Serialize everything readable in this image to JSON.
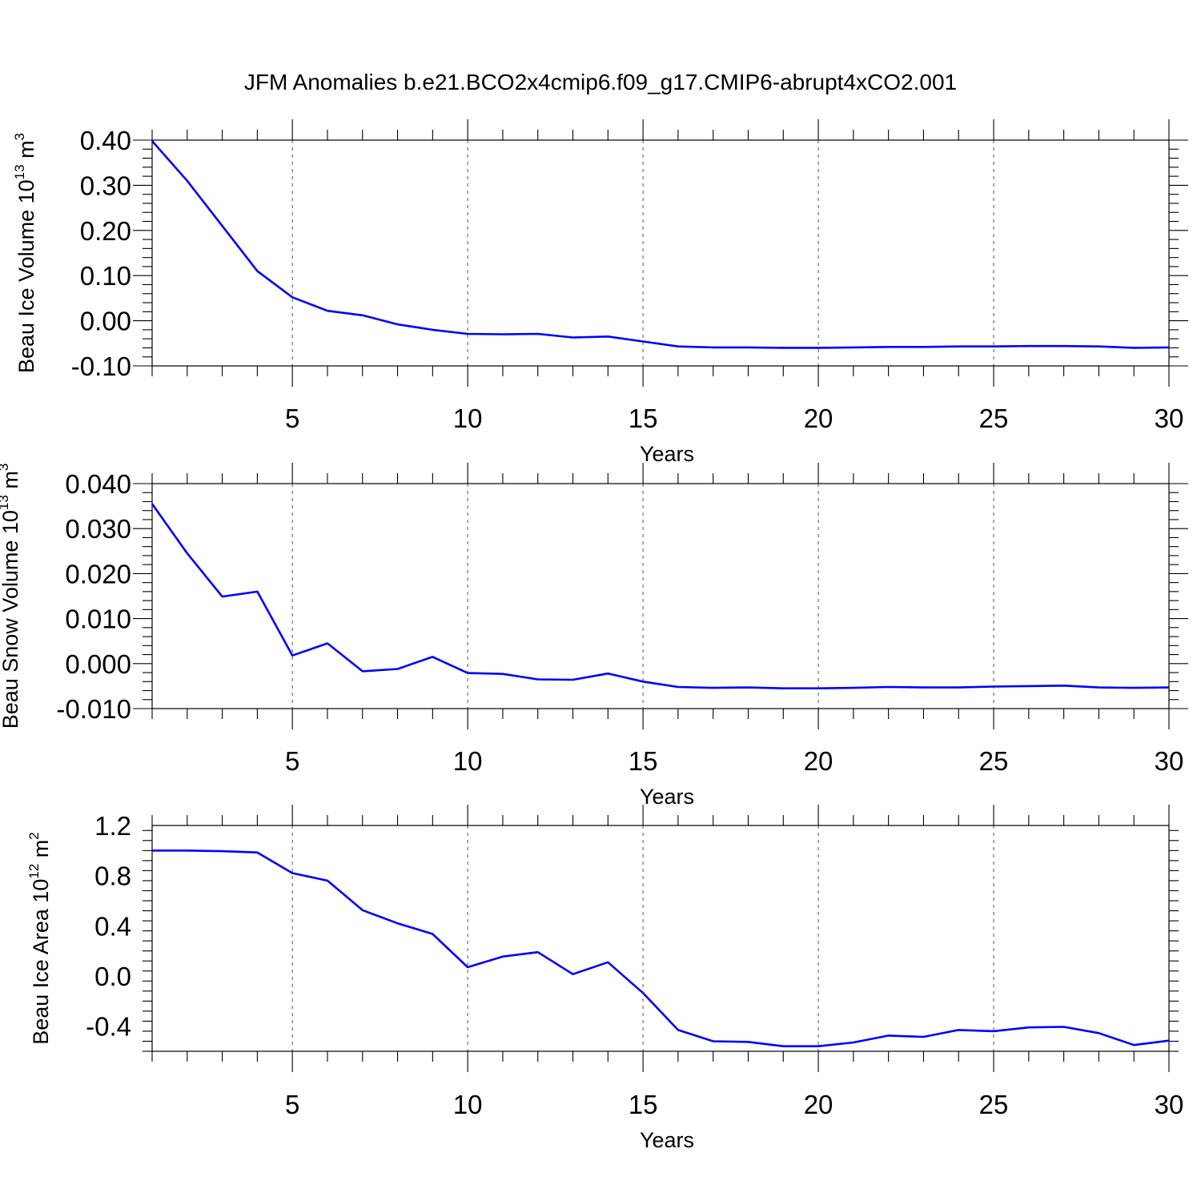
{
  "title": "JFM Anomalies b.e21.BCO2x4cmip6.f09_g17.CMIP6-abrupt4xCO2.001",
  "line_color": "#0000ff",
  "chart_data": [
    {
      "type": "line",
      "ylabel": "Beau Ice Volume 10",
      "ylabel_exp": "13",
      "ylabel_unit": " m",
      "ylabel_unit_exp": "3",
      "xlabel": "Years",
      "xlim": [
        1,
        30
      ],
      "ylim": [
        -0.1,
        0.4
      ],
      "xticks": [
        5,
        10,
        15,
        20,
        25,
        30
      ],
      "xtick_labels": [
        "5",
        "10",
        "15",
        "20",
        "25",
        "30"
      ],
      "yticks": [
        -0.1,
        0.0,
        0.1,
        0.2,
        0.3,
        0.4
      ],
      "ytick_labels": [
        "-0.10",
        "0.00",
        "0.10",
        "0.20",
        "0.30",
        "0.40"
      ],
      "grid": "vertical dashed at major x ticks",
      "x": [
        1,
        2,
        3,
        4,
        5,
        6,
        7,
        8,
        9,
        10,
        11,
        12,
        13,
        14,
        15,
        16,
        17,
        18,
        19,
        20,
        21,
        22,
        23,
        24,
        25,
        26,
        27,
        28,
        29,
        30
      ],
      "y": [
        0.398,
        0.31,
        0.21,
        0.11,
        0.052,
        0.022,
        0.012,
        -0.008,
        -0.02,
        -0.029,
        -0.03,
        -0.029,
        -0.037,
        -0.035,
        -0.046,
        -0.057,
        -0.059,
        -0.059,
        -0.06,
        -0.06,
        -0.059,
        -0.058,
        -0.058,
        -0.057,
        -0.057,
        -0.056,
        -0.056,
        -0.057,
        -0.06,
        -0.059
      ]
    },
    {
      "type": "line",
      "ylabel": "Beau Snow Volume 10",
      "ylabel_exp": "13",
      "ylabel_unit": " m",
      "ylabel_unit_exp": "3",
      "xlabel": "Years",
      "xlim": [
        1,
        30
      ],
      "ylim": [
        -0.01,
        0.04
      ],
      "xticks": [
        5,
        10,
        15,
        20,
        25,
        30
      ],
      "xtick_labels": [
        "5",
        "10",
        "15",
        "20",
        "25",
        "30"
      ],
      "yticks": [
        -0.01,
        0.0,
        0.01,
        0.02,
        0.03,
        0.04
      ],
      "ytick_labels": [
        "-0.010",
        "0.000",
        "0.010",
        "0.020",
        "0.030",
        "0.040"
      ],
      "grid": "vertical dashed at major x ticks",
      "x": [
        1,
        2,
        3,
        4,
        5,
        6,
        7,
        8,
        9,
        10,
        11,
        12,
        13,
        14,
        15,
        16,
        17,
        18,
        19,
        20,
        21,
        22,
        23,
        24,
        25,
        26,
        27,
        28,
        29,
        30
      ],
      "y": [
        0.0355,
        0.0245,
        0.0149,
        0.016,
        0.0018,
        0.0045,
        -0.0017,
        -0.0012,
        0.0015,
        -0.0021,
        -0.0023,
        -0.0035,
        -0.0036,
        -0.0022,
        -0.004,
        -0.0052,
        -0.0054,
        -0.0053,
        -0.0055,
        -0.0055,
        -0.0054,
        -0.0052,
        -0.0053,
        -0.0053,
        -0.0051,
        -0.005,
        -0.0049,
        -0.0053,
        -0.0054,
        -0.0053
      ]
    },
    {
      "type": "line",
      "ylabel": "Beau Ice Area 10",
      "ylabel_exp": "12",
      "ylabel_unit": " m",
      "ylabel_unit_exp": "2",
      "xlabel": "Years",
      "xlim": [
        1,
        30
      ],
      "ylim": [
        -0.6,
        1.2
      ],
      "xticks": [
        5,
        10,
        15,
        20,
        25,
        30
      ],
      "xtick_labels": [
        "5",
        "10",
        "15",
        "20",
        "25",
        "30"
      ],
      "yticks": [
        -0.4,
        0.0,
        0.4,
        0.8,
        1.2
      ],
      "ytick_labels": [
        "-0.4",
        "0.0",
        "0.4",
        "0.8",
        "1.2"
      ],
      "grid": "vertical dashed at major x ticks",
      "x": [
        1,
        2,
        3,
        4,
        5,
        6,
        7,
        8,
        9,
        10,
        11,
        12,
        13,
        14,
        15,
        16,
        17,
        18,
        19,
        20,
        21,
        22,
        23,
        24,
        25,
        26,
        27,
        28,
        29,
        30
      ],
      "y": [
        1.0,
        1.0,
        0.995,
        0.985,
        0.82,
        0.76,
        0.525,
        0.42,
        0.335,
        0.07,
        0.155,
        0.19,
        0.015,
        0.11,
        -0.135,
        -0.43,
        -0.52,
        -0.525,
        -0.56,
        -0.56,
        -0.53,
        -0.475,
        -0.485,
        -0.43,
        -0.44,
        -0.41,
        -0.405,
        -0.455,
        -0.55,
        -0.515
      ]
    }
  ]
}
